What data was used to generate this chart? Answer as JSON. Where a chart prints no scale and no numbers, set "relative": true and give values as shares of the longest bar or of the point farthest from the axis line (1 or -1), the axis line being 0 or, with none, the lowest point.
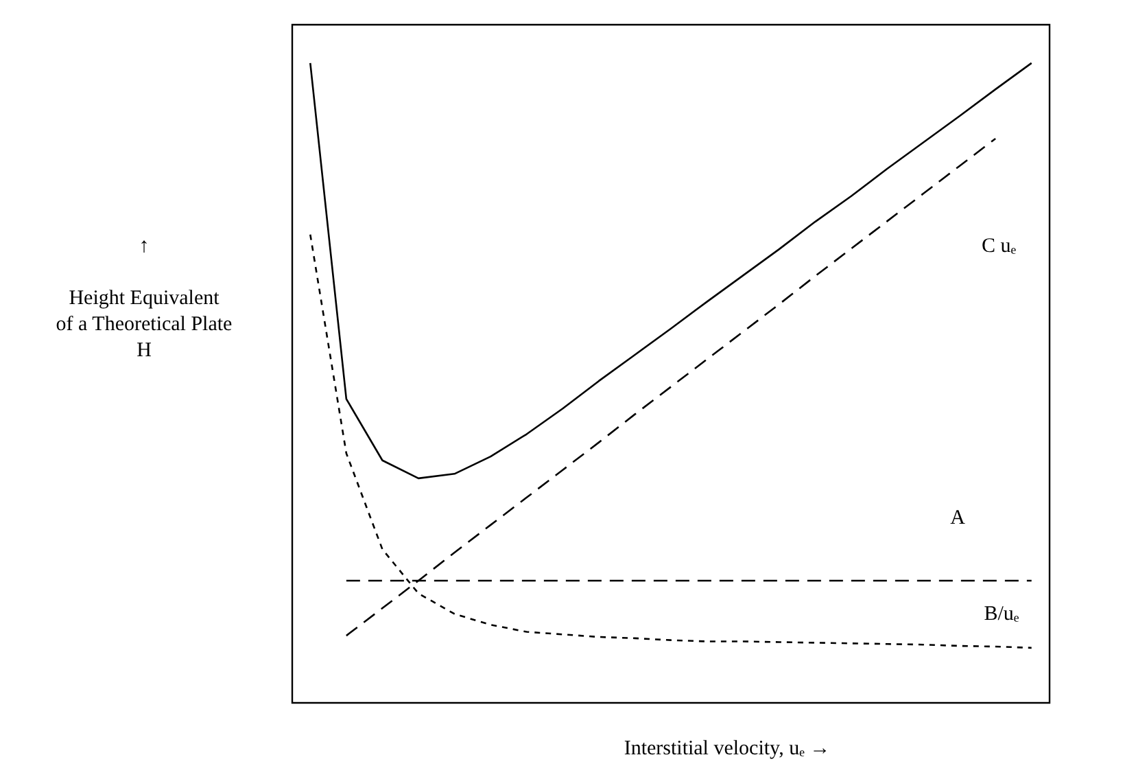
{
  "chart_data": {
    "type": "line",
    "relative": true,
    "xlabel": "Interstitial velocity, uₑ →",
    "ylabel": "↑\n\nHeight Equivalent\nof a Theoretical Plate\nH",
    "categories": [
      null,
      null,
      null,
      null,
      null,
      null,
      null,
      null,
      null,
      null,
      null,
      null,
      null,
      null,
      null,
      null,
      null,
      null,
      null,
      null,
      null
    ],
    "series": [
      {
        "color": "#000000",
        "line_style": "solid",
        "values": [
          1.0,
          0.475,
          0.379,
          0.351,
          0.358,
          0.385,
          0.42,
          0.46,
          0.503,
          0.544,
          0.585,
          0.627,
          0.668,
          0.709,
          0.752,
          0.792,
          0.835,
          0.876,
          0.917,
          0.959,
          1.0
        ]
      },
      {
        "color": "#000000",
        "line_style": "dashed",
        "values": [
          null,
          0.105,
          0.148,
          0.191,
          0.235,
          0.278,
          0.321,
          0.364,
          0.407,
          0.451,
          0.494,
          0.537,
          0.58,
          0.623,
          0.667,
          0.71,
          0.753,
          0.796,
          0.839,
          0.882,
          null
        ]
      },
      {
        "color": "#000000",
        "line_style": "dashed",
        "values": [
          null,
          0.191,
          0.191,
          0.191,
          0.191,
          0.191,
          0.191,
          0.191,
          0.191,
          0.191,
          0.191,
          0.191,
          0.191,
          0.191,
          0.191,
          0.191,
          0.191,
          0.191,
          0.191,
          0.191,
          0.191
        ]
      },
      {
        "color": "#000000",
        "line_style": "dotted",
        "values": [
          0.732,
          0.39,
          0.24,
          0.171,
          0.139,
          0.122,
          0.111,
          0.107,
          0.103,
          0.101,
          0.098,
          0.096,
          0.096,
          0.095,
          0.094,
          0.093,
          0.092,
          0.091,
          0.089,
          0.088,
          0.086
        ]
      }
    ],
    "annotations": [
      "C uₑ",
      "A",
      "B/uₑ"
    ],
    "grid": false,
    "marker": "none"
  }
}
